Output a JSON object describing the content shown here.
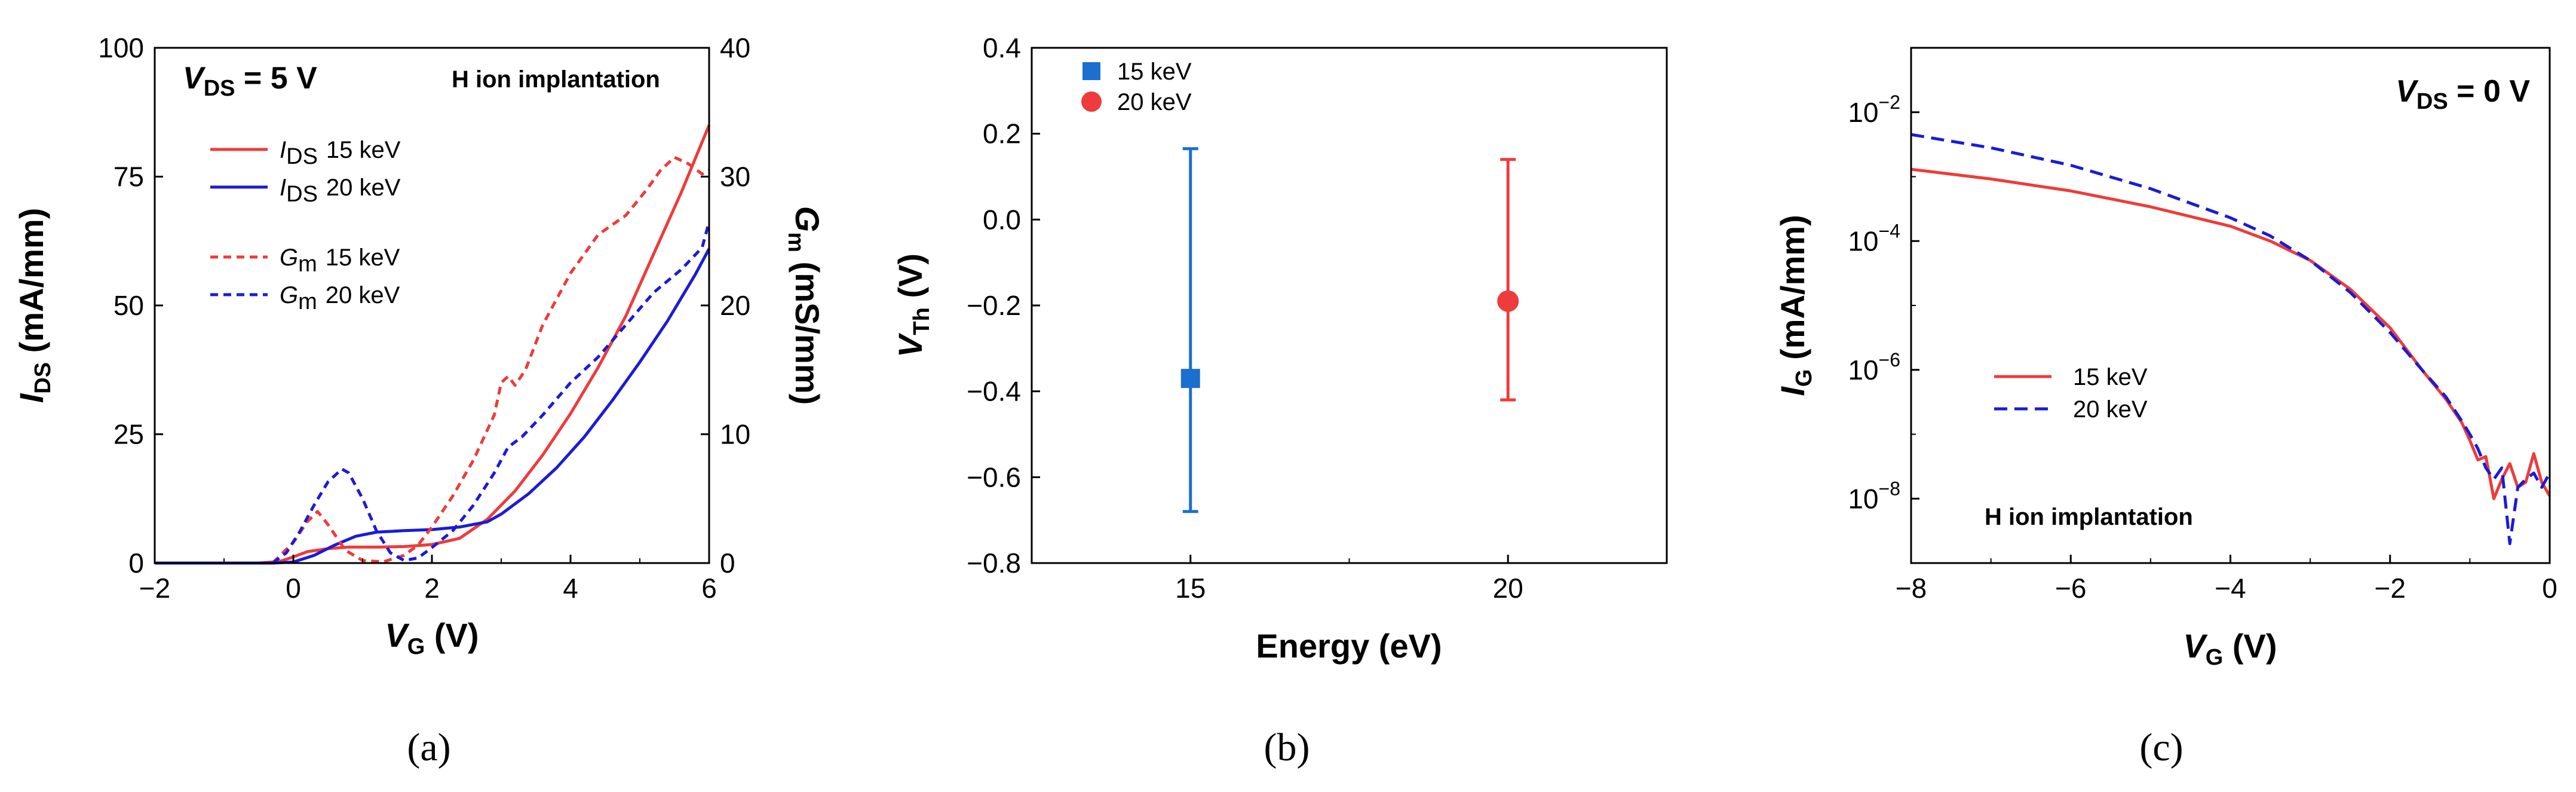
{
  "colors": {
    "red": "#ee3b3b",
    "blue": "#1b1bd6",
    "blue_b": "#1a6fcf"
  },
  "panels": {
    "a": {
      "caption": "(a)",
      "annotation_vds": {
        "main": "V",
        "sub": "DS",
        "rest": " = 5 V"
      },
      "annotation_method": "H ion implantation",
      "legend": [
        {
          "sym": "I",
          "sub": "DS",
          "label": "15 keV"
        },
        {
          "sym": "I",
          "sub": "DS",
          "label": "20 keV"
        },
        {
          "sym": "G",
          "sub": "m",
          "label": "15 keV"
        },
        {
          "sym": "G",
          "sub": "m",
          "label": "20 keV"
        }
      ],
      "xlabel": {
        "main": "V",
        "sub": "G",
        "rest": " (V)"
      },
      "ylabel": {
        "main": "I",
        "sub": "DS",
        "rest": " (mA/mm)"
      },
      "y2label": {
        "main": "G",
        "sub": "m",
        "rest": " (mS/mm)"
      },
      "xticks": [
        "−2",
        "0",
        "2",
        "4",
        "6"
      ],
      "yticks": [
        "0",
        "25",
        "50",
        "75",
        "100"
      ],
      "y2ticks": [
        "0",
        "10",
        "20",
        "30",
        "40"
      ]
    },
    "b": {
      "caption": "(b)",
      "xlabel": "Energy (eV)",
      "ylabel": {
        "main": "V",
        "sub": "Th",
        "rest": " (V)"
      },
      "xticks": [
        "15",
        "20"
      ],
      "yticks": [
        "−0.8",
        "−0.6",
        "−0.4",
        "−0.2",
        "0.0",
        "0.2",
        "0.4"
      ],
      "legend": [
        "15 keV",
        "20 keV"
      ]
    },
    "c": {
      "caption": "(c)",
      "annotation_vds": {
        "main": "V",
        "sub": "DS",
        "rest": " = 0 V"
      },
      "annotation_method": "H ion implantation",
      "xlabel": {
        "main": "V",
        "sub": "G",
        "rest": " (V)"
      },
      "ylabel": {
        "main": "I",
        "sub": "G",
        "rest": " (mA/mm)"
      },
      "xticks": [
        "−8",
        "−6",
        "−4",
        "−2",
        "0"
      ],
      "yticks": [
        {
          "base": "10",
          "exp": "−8"
        },
        {
          "base": "10",
          "exp": "−6"
        },
        {
          "base": "10",
          "exp": "−4"
        },
        {
          "base": "10",
          "exp": "−2"
        }
      ],
      "legend": [
        "15 keV",
        "20 keV"
      ]
    }
  },
  "chart_data": [
    {
      "type": "line",
      "title": "",
      "xlabel": "VG (V)",
      "ylabel": "IDS (mA/mm)",
      "y2label": "Gm (mS/mm)",
      "xlim": [
        -2,
        6
      ],
      "ylim": [
        0,
        100
      ],
      "y2lim": [
        0,
        40
      ],
      "series": [
        {
          "name": "IDS 15 keV",
          "axis": "left",
          "style": "solid",
          "color": "red",
          "x": [
            -2,
            -0.5,
            -0.2,
            0,
            0.2,
            0.5,
            0.8,
            1.2,
            1.6,
            2.0,
            2.4,
            2.8,
            3.2,
            3.6,
            4.0,
            4.4,
            4.8,
            5.2,
            5.6,
            6.0
          ],
          "y": [
            0,
            0,
            0.3,
            1.2,
            2.2,
            2.8,
            3.1,
            3.1,
            3.2,
            3.6,
            4.8,
            8.5,
            14,
            21,
            29,
            38,
            48,
            60,
            72,
            85
          ]
        },
        {
          "name": "IDS 20 keV",
          "axis": "left",
          "style": "solid",
          "color": "blue",
          "x": [
            -2,
            -0.3,
            0,
            0.3,
            0.6,
            0.9,
            1.2,
            1.6,
            2.0,
            2.4,
            2.8,
            3.0,
            3.4,
            3.8,
            4.2,
            4.6,
            5.0,
            5.4,
            5.8,
            6.0
          ],
          "y": [
            0,
            0,
            0.2,
            1.5,
            3.5,
            5.2,
            6.0,
            6.3,
            6.5,
            7.0,
            8.0,
            9.5,
            13.5,
            18.5,
            24.5,
            31.5,
            39,
            47,
            56,
            61
          ]
        },
        {
          "name": "Gm 15 keV",
          "axis": "right",
          "style": "dashed",
          "color": "red",
          "x": [
            -2,
            -0.3,
            0,
            0.2,
            0.35,
            0.5,
            0.75,
            1.0,
            1.3,
            1.6,
            1.8,
            2.0,
            2.3,
            2.6,
            2.9,
            3.0,
            3.1,
            3.2,
            3.35,
            3.6,
            4.0,
            4.4,
            4.8,
            5.1,
            5.3,
            5.5,
            5.7,
            5.9,
            6.0
          ],
          "y": [
            0,
            0,
            1.6,
            3.2,
            4.0,
            3.0,
            1.0,
            0.2,
            0.1,
            0.6,
            1.4,
            2.8,
            5.2,
            8.0,
            11.5,
            14.0,
            14.5,
            13.8,
            15.0,
            18.5,
            22.5,
            25.5,
            27.0,
            29.0,
            30.5,
            31.5,
            31.0,
            30.2,
            30.5
          ]
        },
        {
          "name": "Gm 20 keV",
          "axis": "right",
          "style": "dashed",
          "color": "blue",
          "x": [
            -2,
            -0.3,
            -0.1,
            0.1,
            0.3,
            0.5,
            0.7,
            0.8,
            1.0,
            1.2,
            1.4,
            1.6,
            1.8,
            2.0,
            2.3,
            2.6,
            2.9,
            3.1,
            3.3,
            3.6,
            4.0,
            4.4,
            4.8,
            5.2,
            5.6,
            5.9,
            6.0
          ],
          "y": [
            0,
            0,
            0.8,
            2.5,
            4.5,
            6.3,
            7.3,
            7.0,
            5.0,
            2.5,
            0.8,
            0.2,
            0.4,
            1.2,
            2.5,
            4.5,
            7.0,
            9.0,
            9.8,
            11.5,
            14.0,
            16.0,
            18.5,
            21.0,
            22.8,
            24.5,
            26.5
          ]
        }
      ]
    },
    {
      "type": "scatter",
      "title": "",
      "xlabel": "Energy (eV)",
      "ylabel": "VTh (V)",
      "categories": [
        "15",
        "20"
      ],
      "xlim": [
        12.5,
        22.5
      ],
      "ylim": [
        -0.8,
        0.4
      ],
      "series": [
        {
          "name": "15 keV",
          "x": 15,
          "y": -0.37,
          "err_low": -0.68,
          "err_high": 0.165,
          "marker": "square",
          "color": "blue_b"
        },
        {
          "name": "20 keV",
          "x": 20,
          "y": -0.19,
          "err_low": -0.42,
          "err_high": 0.14,
          "marker": "circle",
          "color": "red"
        }
      ]
    },
    {
      "type": "line",
      "title": "",
      "xlabel": "VG (V)",
      "ylabel": "IG (mA/mm)",
      "yscale": "log",
      "xlim": [
        -8,
        0
      ],
      "ylim": [
        1e-09,
        0.1
      ],
      "series": [
        {
          "name": "15 keV",
          "style": "solid",
          "color": "red",
          "x": [
            -8,
            -7,
            -6,
            -5,
            -4,
            -3.5,
            -3,
            -2.5,
            -2,
            -1.6,
            -1.3,
            -1.1,
            -1.0,
            -0.9,
            -0.8,
            -0.7,
            -0.6,
            -0.5,
            -0.4,
            -0.3,
            -0.2,
            -0.1,
            0
          ],
          "y": [
            0.0013,
            0.00092,
            0.0006,
            0.00034,
            0.00017,
            0.0001,
            5e-05,
            1.8e-05,
            4.5e-06,
            1e-06,
            3.5e-07,
            1.5e-07,
            8e-08,
            4e-08,
            4.5e-08,
            1e-08,
            2e-08,
            3.5e-08,
            1.5e-08,
            1.8e-08,
            5e-08,
            1.8e-08,
            1.1e-08
          ]
        },
        {
          "name": "20 keV",
          "style": "dashed",
          "color": "blue",
          "x": [
            -8,
            -7,
            -6,
            -5,
            -4,
            -3.5,
            -3,
            -2.5,
            -2,
            -1.6,
            -1.3,
            -1.1,
            -1.0,
            -0.9,
            -0.8,
            -0.7,
            -0.6,
            -0.5,
            -0.4,
            -0.3,
            -0.2,
            -0.1,
            0
          ],
          "y": [
            0.0045,
            0.0028,
            0.0015,
            0.00065,
            0.00023,
            0.00012,
            5e-05,
            1.6e-05,
            3.8e-06,
            1e-06,
            3.8e-07,
            1.6e-07,
            1e-07,
            6e-08,
            3e-08,
            2e-08,
            3e-08,
            2e-09,
            1.5e-08,
            2e-08,
            2.5e-08,
            1.5e-08,
            2.5e-08
          ]
        }
      ]
    }
  ]
}
